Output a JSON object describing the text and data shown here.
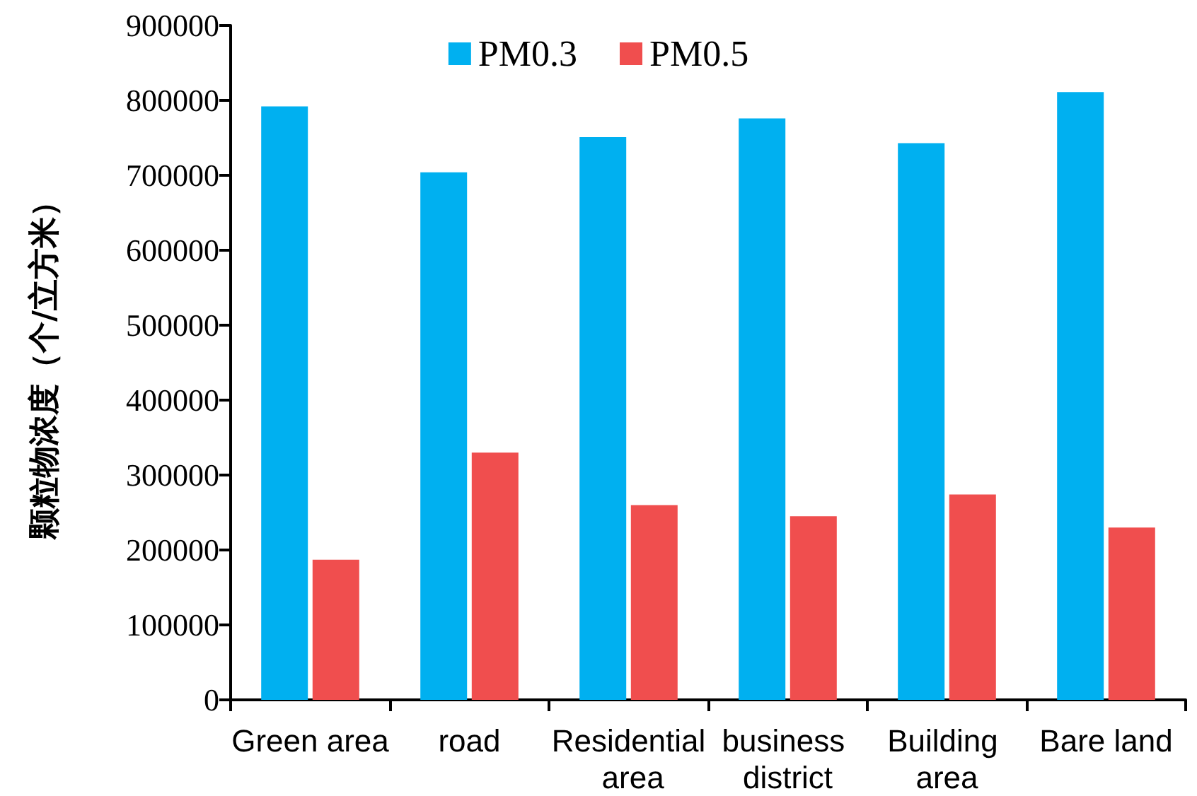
{
  "chart_data": {
    "type": "bar",
    "ylabel": "颗粒物浓度（个/立方米）",
    "categories": [
      "Green area",
      "road",
      "Residential area",
      "business district",
      "Building area",
      "Bare land"
    ],
    "series": [
      {
        "name": "PM0.3",
        "color": "#00b0f0",
        "values": [
          792000,
          704000,
          751000,
          776000,
          743000,
          811000
        ]
      },
      {
        "name": "PM0.5",
        "color": "#f04e4e",
        "values": [
          187000,
          330000,
          260000,
          245000,
          274000,
          230000
        ]
      }
    ],
    "ylim": [
      0,
      900000
    ],
    "yticks": [
      0,
      100000,
      200000,
      300000,
      400000,
      500000,
      600000,
      700000,
      800000,
      900000
    ],
    "grid": false,
    "legend": "top"
  }
}
